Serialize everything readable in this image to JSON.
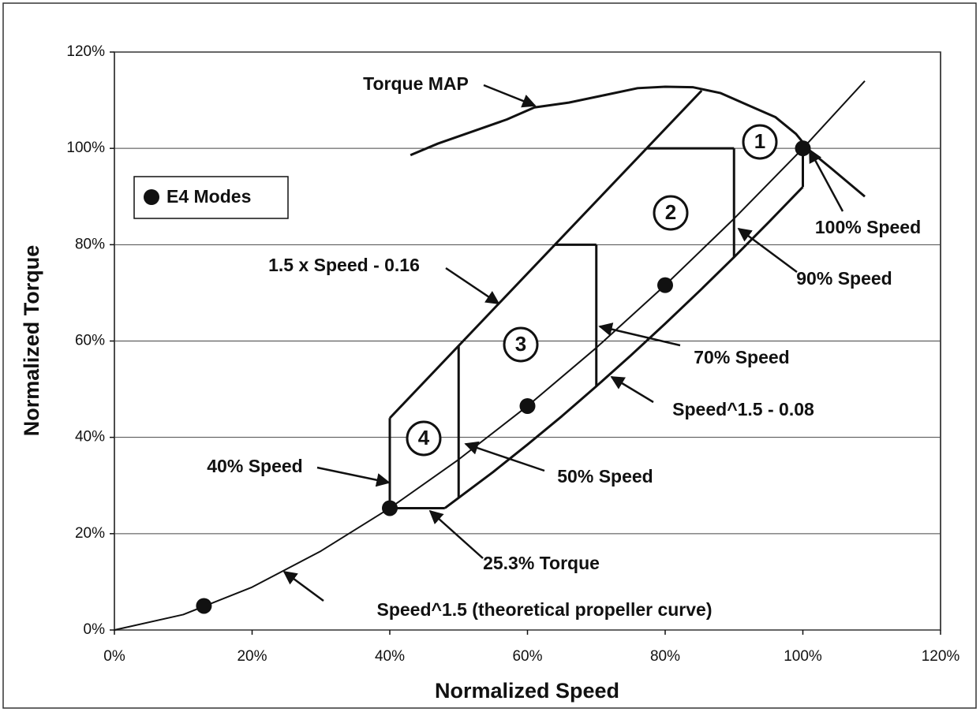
{
  "chart_data": {
    "type": "line",
    "xlabel": "Normalized Speed",
    "ylabel": "Normalized Torque",
    "xlim": [
      0,
      120
    ],
    "ylim": [
      0,
      120
    ],
    "xticks": [
      {
        "value": 0,
        "label": "0%"
      },
      {
        "value": 20,
        "label": "20%"
      },
      {
        "value": 40,
        "label": "40%"
      },
      {
        "value": 60,
        "label": "60%"
      },
      {
        "value": 80,
        "label": "80%"
      },
      {
        "value": 100,
        "label": "100%"
      },
      {
        "value": 120,
        "label": "120%"
      }
    ],
    "yticks": [
      {
        "value": 0,
        "label": "0%"
      },
      {
        "value": 20,
        "label": "20%"
      },
      {
        "value": 40,
        "label": "40%"
      },
      {
        "value": 60,
        "label": "60%"
      },
      {
        "value": 80,
        "label": "80%"
      },
      {
        "value": 100,
        "label": "100%"
      },
      {
        "value": 120,
        "label": "120%"
      }
    ],
    "grid": true,
    "legend": "left",
    "series": [
      {
        "name": "E4 Modes",
        "type": "scatter",
        "color": "#111111",
        "x": [
          13,
          40,
          60,
          80,
          100
        ],
        "values": [
          5,
          25.3,
          46.5,
          71.6,
          100
        ]
      },
      {
        "type": "line",
        "color": "#111111",
        "x": [
          0,
          10,
          20,
          30,
          40,
          50,
          60,
          70,
          80,
          90,
          100,
          109
        ],
        "values": [
          0,
          3.2,
          8.9,
          16.4,
          25.3,
          35.4,
          46.5,
          58.6,
          71.6,
          85.4,
          100,
          114
        ]
      },
      {
        "type": "line",
        "color": "#111111",
        "x": [
          43,
          47,
          52,
          57,
          61,
          66,
          71,
          76,
          80,
          84,
          88,
          92,
          96,
          99,
          101,
          104,
          109
        ],
        "values": [
          98.6,
          101,
          103.5,
          106,
          108.5,
          109.5,
          111,
          112.5,
          112.8,
          112.7,
          111.5,
          109,
          106.5,
          103,
          99.5,
          96,
          90
        ]
      },
      {
        "type": "line",
        "color": "#111111",
        "x": [
          40,
          85.3
        ],
        "values": [
          44,
          112
        ]
      },
      {
        "type": "line",
        "color": "#111111",
        "x": [
          48,
          55,
          60,
          65,
          70,
          75,
          80,
          85,
          90,
          95,
          100
        ],
        "values": [
          25.3,
          32.8,
          38.5,
          44.4,
          50.6,
          57,
          63.6,
          70.4,
          77.4,
          84.6,
          92
        ]
      },
      {
        "type": "line",
        "color": "#111111",
        "x": [
          40,
          40
        ],
        "values": [
          25.3,
          44
        ]
      },
      {
        "type": "line",
        "color": "#111111",
        "x": [
          40,
          48
        ],
        "values": [
          25.3,
          25.3
        ]
      },
      {
        "type": "line",
        "color": "#111111",
        "x": [
          50,
          50
        ],
        "values": [
          27.4,
          59
        ]
      },
      {
        "type": "line",
        "color": "#111111",
        "x": [
          64,
          70
        ],
        "values": [
          80,
          80
        ]
      },
      {
        "type": "line",
        "color": "#111111",
        "x": [
          70,
          70
        ],
        "values": [
          50.6,
          80
        ]
      },
      {
        "type": "line",
        "color": "#111111",
        "x": [
          77.3,
          90
        ],
        "values": [
          100,
          100
        ]
      },
      {
        "type": "line",
        "color": "#111111",
        "x": [
          90,
          90
        ],
        "values": [
          77.4,
          100
        ]
      },
      {
        "type": "line",
        "color": "#111111",
        "x": [
          100,
          100
        ],
        "values": [
          92,
          100
        ]
      }
    ],
    "annotations": [
      "Torque MAP",
      "100% Speed",
      "90% Speed",
      "1.5 x Speed - 0.16",
      "70% Speed",
      "Speed^1.5 - 0.08",
      "40% Speed",
      "50% Speed",
      "25.3% Torque",
      "Speed^1.5 (theoretical propeller curve)"
    ],
    "region_labels": [
      "1",
      "2",
      "3",
      "4"
    ]
  }
}
